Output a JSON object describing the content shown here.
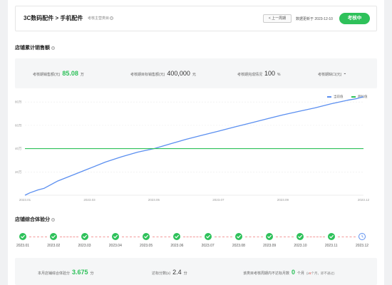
{
  "header": {
    "breadcrumb": "3C数码配件 > 手机配件",
    "tag": "考核主营类目",
    "prev_button": "< 上一周期",
    "updated": "数据更新于 2023-12-10",
    "action_button": "考核中"
  },
  "sales_section": {
    "title": "店铺累计销售额",
    "stats": [
      {
        "label": "考核期销售额(元)",
        "value": "85.08",
        "unit": "万"
      },
      {
        "label": "考核期目标销售额(元)",
        "value": "400,000",
        "unit": "元"
      },
      {
        "label": "考核期完成情况",
        "value": "100",
        "unit": "%"
      },
      {
        "label": "考核期缺口(元)",
        "value": "-",
        "unit": ""
      }
    ]
  },
  "chart_data": {
    "type": "line",
    "legend": [
      "当前值",
      "目标值"
    ],
    "x_ticks": [
      "2023.01",
      "2023.03",
      "2023.05",
      "2023.07",
      "2023.09",
      "2023.12"
    ],
    "y_ticks": [
      "20万",
      "40万",
      "60万",
      "80万"
    ],
    "ylim": [
      0,
      85
    ],
    "series": [
      {
        "name": "当前值",
        "color": "#5b8ff0",
        "points": [
          [
            0,
            0
          ],
          [
            0.15,
            2
          ],
          [
            0.4,
            4.5
          ],
          [
            0.6,
            6
          ],
          [
            1.0,
            12
          ],
          [
            1.5,
            17.5
          ],
          [
            2.0,
            23
          ],
          [
            2.5,
            28.5
          ],
          [
            3.0,
            33
          ],
          [
            3.5,
            37
          ],
          [
            4.0,
            40
          ],
          [
            4.5,
            44
          ],
          [
            5.0,
            48
          ],
          [
            5.5,
            51.5
          ],
          [
            6.0,
            55
          ],
          [
            6.5,
            58.5
          ],
          [
            7.0,
            62
          ],
          [
            7.5,
            65.5
          ],
          [
            8.0,
            69
          ],
          [
            8.5,
            72
          ],
          [
            9.0,
            75
          ],
          [
            9.5,
            78.5
          ],
          [
            10.0,
            81.5
          ],
          [
            10.3,
            83
          ],
          [
            10.5,
            84.5
          ]
        ]
      },
      {
        "name": "目标值",
        "color": "#2ec15a",
        "points": [
          [
            0,
            40
          ],
          [
            10.5,
            40
          ]
        ]
      }
    ],
    "x_tick_positions": [
      0,
      2,
      4,
      6,
      8,
      10.5
    ],
    "x_range": [
      0,
      10.5
    ]
  },
  "score_section": {
    "title": "店铺综合体验分",
    "months": [
      {
        "label": "2023.01",
        "status": "done"
      },
      {
        "label": "2023.02",
        "status": "done"
      },
      {
        "label": "2023.03",
        "status": "done"
      },
      {
        "label": "2023.04",
        "status": "done"
      },
      {
        "label": "2023.05",
        "status": "done"
      },
      {
        "label": "2023.06",
        "status": "done"
      },
      {
        "label": "2023.07",
        "status": "done"
      },
      {
        "label": "2023.08",
        "status": "done"
      },
      {
        "label": "2023.09",
        "status": "done"
      },
      {
        "label": "2023.10",
        "status": "done"
      },
      {
        "label": "2023.11",
        "status": "done"
      },
      {
        "label": "2023.12",
        "status": "pending"
      }
    ]
  },
  "bottom": {
    "score_label": "本月店铺综合体验分",
    "score_value": "3.675",
    "score_unit": "分",
    "target_label": "达标分数(≥)",
    "target_value": "2.4",
    "target_unit": "分",
    "months_label": "该类目考核周期内不达标月数",
    "months_value": "0",
    "months_unit": "个月",
    "note_prefix": "(≥",
    "note_num": "5",
    "note_suffix": "个月，即不通过)"
  },
  "colors": {
    "accent": "#2ec15a",
    "line": "#5b8ff0",
    "alert": "#e8453c"
  }
}
